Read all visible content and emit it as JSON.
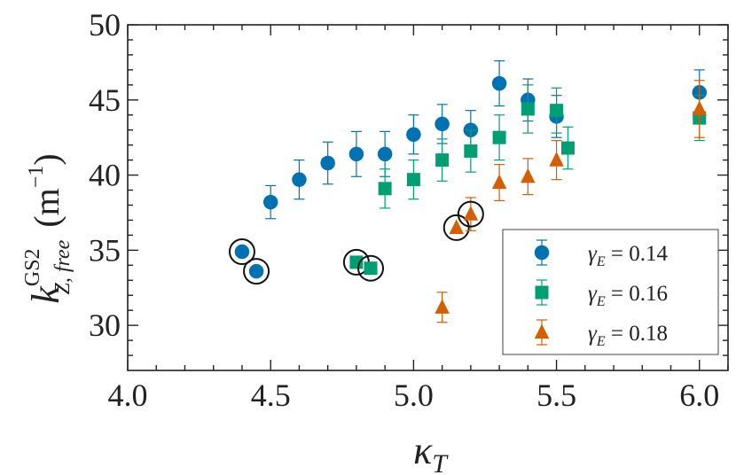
{
  "chart_data": {
    "type": "scatter",
    "xlabel": "κ_T",
    "ylabel": "k_Z, free^GS2 (m^-1)",
    "ylabel_base": "k",
    "ylabel_sub": "Z, free",
    "ylabel_sup": "GS2",
    "ylabel_unit": "(m",
    "ylabel_unit_exp": "−1",
    "ylabel_unit_close": ")",
    "xlim": [
      4.0,
      6.1
    ],
    "ylim": [
      27,
      50
    ],
    "xticks": [
      4.0,
      4.5,
      5.0,
      5.5,
      6.0
    ],
    "xtick_labels": [
      "4.0",
      "4.5",
      "5.0",
      "5.5",
      "6.0"
    ],
    "yticks": [
      30,
      35,
      40,
      45,
      50
    ],
    "ytick_labels": [
      "30",
      "35",
      "40",
      "45",
      "50"
    ],
    "legend_position": "lower-right",
    "series": [
      {
        "name": "γ_E = 0.14",
        "label_main": "γ",
        "label_sub": "E",
        "label_rest": " = 0.14",
        "color": "#0072b2",
        "marker": "circle",
        "points": [
          {
            "x": 4.4,
            "y": 34.9,
            "err": 0.0,
            "circled": true
          },
          {
            "x": 4.45,
            "y": 33.6,
            "err": 0.0,
            "circled": true
          },
          {
            "x": 4.5,
            "y": 38.2,
            "err": 1.1,
            "circled": false
          },
          {
            "x": 4.6,
            "y": 39.7,
            "err": 1.3,
            "circled": false
          },
          {
            "x": 4.7,
            "y": 40.8,
            "err": 1.4,
            "circled": false
          },
          {
            "x": 4.8,
            "y": 41.4,
            "err": 1.5,
            "circled": false
          },
          {
            "x": 4.9,
            "y": 41.4,
            "err": 1.5,
            "circled": false
          },
          {
            "x": 5.0,
            "y": 42.7,
            "err": 1.3,
            "circled": false
          },
          {
            "x": 5.1,
            "y": 43.4,
            "err": 1.3,
            "circled": false
          },
          {
            "x": 5.2,
            "y": 43.0,
            "err": 1.3,
            "circled": false
          },
          {
            "x": 5.3,
            "y": 46.1,
            "err": 1.5,
            "circled": false
          },
          {
            "x": 5.4,
            "y": 45.0,
            "err": 1.4,
            "circled": false
          },
          {
            "x": 5.5,
            "y": 43.9,
            "err": 1.4,
            "circled": false
          },
          {
            "x": 6.0,
            "y": 45.5,
            "err": 1.5,
            "circled": false
          }
        ]
      },
      {
        "name": "γ_E = 0.16",
        "label_main": "γ",
        "label_sub": "E",
        "label_rest": " = 0.16",
        "color": "#009e73",
        "marker": "square",
        "points": [
          {
            "x": 4.8,
            "y": 34.2,
            "err": 0.0,
            "circled": true
          },
          {
            "x": 4.85,
            "y": 33.8,
            "err": 0.0,
            "circled": true
          },
          {
            "x": 4.9,
            "y": 39.1,
            "err": 1.3,
            "circled": false
          },
          {
            "x": 5.0,
            "y": 39.7,
            "err": 1.3,
            "circled": false
          },
          {
            "x": 5.1,
            "y": 41.0,
            "err": 1.4,
            "circled": false
          },
          {
            "x": 5.2,
            "y": 41.6,
            "err": 1.4,
            "circled": false
          },
          {
            "x": 5.3,
            "y": 42.5,
            "err": 1.5,
            "circled": false
          },
          {
            "x": 5.4,
            "y": 44.4,
            "err": 1.6,
            "circled": false
          },
          {
            "x": 5.5,
            "y": 44.3,
            "err": 1.5,
            "circled": false
          },
          {
            "x": 5.54,
            "y": 41.8,
            "err": 1.4,
            "circled": false
          },
          {
            "x": 6.0,
            "y": 43.8,
            "err": 1.5,
            "circled": false
          }
        ]
      },
      {
        "name": "γ_E = 0.18",
        "label_main": "γ",
        "label_sub": "E",
        "label_rest": " = 0.18",
        "color": "#d55e00",
        "marker": "triangle",
        "points": [
          {
            "x": 5.1,
            "y": 31.2,
            "err": 1.0,
            "circled": false
          },
          {
            "x": 5.15,
            "y": 36.5,
            "err": 0.0,
            "circled": true
          },
          {
            "x": 5.2,
            "y": 37.4,
            "err": 1.1,
            "circled": true
          },
          {
            "x": 5.3,
            "y": 39.5,
            "err": 1.2,
            "circled": false
          },
          {
            "x": 5.4,
            "y": 39.9,
            "err": 1.2,
            "circled": false
          },
          {
            "x": 5.5,
            "y": 41.0,
            "err": 1.3,
            "circled": false
          },
          {
            "x": 6.0,
            "y": 44.4,
            "err": 1.9,
            "circled": false
          }
        ]
      }
    ]
  }
}
